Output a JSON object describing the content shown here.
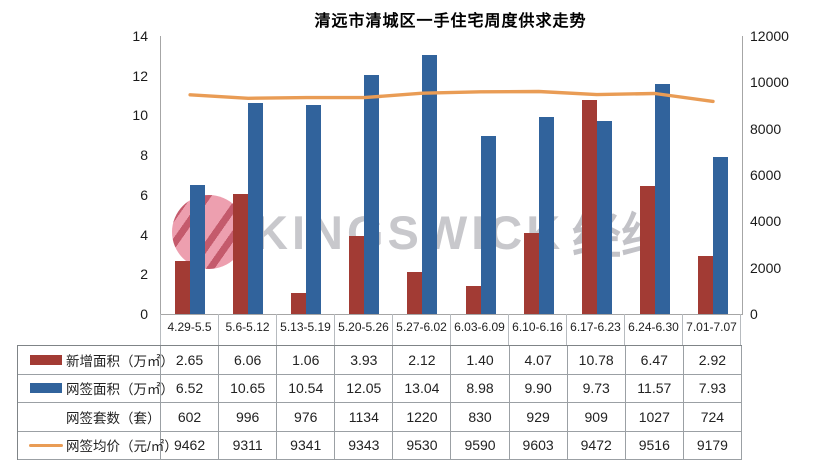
{
  "title": "清远市清城区一手住宅周度供求走势",
  "watermark": {
    "latin": "KINGSWICK",
    "cn": "经纬",
    "logo": "kingswick-logo"
  },
  "colors": {
    "new_area_bar": "#A23B34",
    "signed_area_bar": "#31639C",
    "price_line": "#E99C55",
    "axis_line": "#A6A6A6",
    "watermark_text": "#C8C8CC"
  },
  "chart_data": {
    "type": "bar+line",
    "title": "清远市清城区一手住宅周度供求走势",
    "categories": [
      "4.29-5.5",
      "5.6-5.12",
      "5.13-5.19",
      "5.20-5.26",
      "5.27-6.02",
      "6.03-6.09",
      "6.10-6.16",
      "6.17-6.23",
      "6.24-6.30",
      "7.01-7.07"
    ],
    "series": [
      {
        "name": "新增面积（万㎡）",
        "type": "bar",
        "axis": "left",
        "swatch": "bar",
        "color": "#A23B34",
        "values": [
          "2.65",
          "6.06",
          "1.06",
          "3.93",
          "2.12",
          "1.40",
          "4.07",
          "10.78",
          "6.47",
          "2.92"
        ]
      },
      {
        "name": "网签面积（万㎡）",
        "type": "bar",
        "axis": "left",
        "swatch": "bar",
        "color": "#31639C",
        "values": [
          "6.52",
          "10.65",
          "10.54",
          "12.05",
          "13.04",
          "8.98",
          "9.90",
          "9.73",
          "11.57",
          "7.93"
        ]
      },
      {
        "name": "网签套数（套）",
        "type": "table-only",
        "axis": "none",
        "swatch": "none",
        "color": "",
        "values": [
          "602",
          "996",
          "976",
          "1134",
          "1220",
          "830",
          "929",
          "909",
          "1027",
          "724"
        ]
      },
      {
        "name": "网签均价（元/㎡）",
        "type": "line",
        "axis": "right",
        "swatch": "line",
        "color": "#E99C55",
        "values": [
          "9462",
          "9311",
          "9341",
          "9343",
          "9530",
          "9590",
          "9603",
          "9472",
          "9516",
          "9179"
        ]
      }
    ],
    "left_axis": {
      "min": 0,
      "max": 14,
      "ticks": [
        "0",
        "2",
        "4",
        "6",
        "8",
        "10",
        "12",
        "14"
      ]
    },
    "right_axis": {
      "min": 0,
      "max": 12000,
      "ticks": [
        "0",
        "2000",
        "4000",
        "6000",
        "8000",
        "10000",
        "12000"
      ]
    },
    "grid": false,
    "legend_position": "table-left"
  }
}
